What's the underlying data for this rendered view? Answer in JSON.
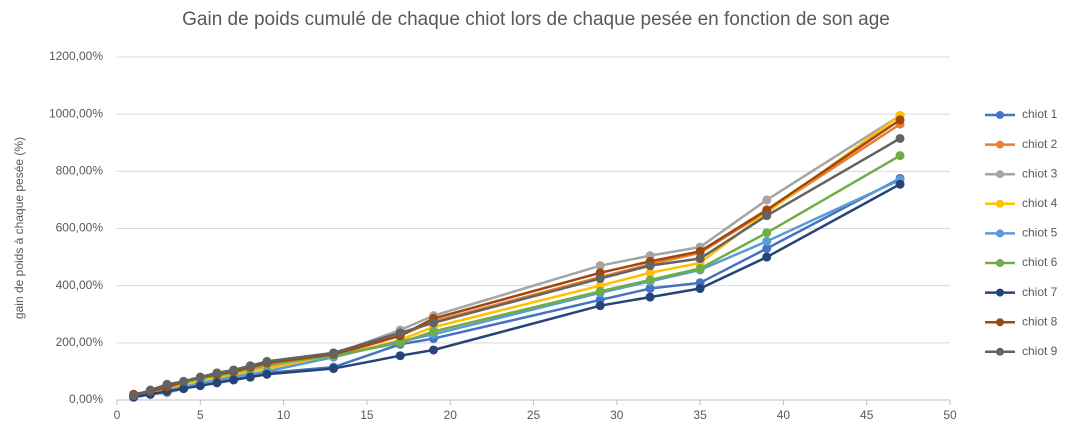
{
  "chart_data": {
    "type": "line",
    "title": "Gain de poids cumulé de chaque chiot lors de chaque pesée en fonction de son age",
    "ylabel": "gain de poids à chaque pesée (%)",
    "x": [
      1,
      2,
      3,
      4,
      5,
      6,
      7,
      8,
      9,
      13,
      17,
      19,
      29,
      32,
      35,
      39,
      47
    ],
    "xlim": [
      0,
      50
    ],
    "xticks": [
      0,
      5,
      10,
      15,
      20,
      25,
      30,
      35,
      40,
      45,
      50
    ],
    "ylim": [
      0,
      1200
    ],
    "yticks": [
      {
        "value": 0,
        "label": "0,00%"
      },
      {
        "value": 200,
        "label": "200,00%"
      },
      {
        "value": 400,
        "label": "400,00%"
      },
      {
        "value": 600,
        "label": "600,00%"
      },
      {
        "value": 800,
        "label": "800,00%"
      },
      {
        "value": 1000,
        "label": "1000,00%"
      },
      {
        "value": 1200,
        "label": "1200,00%"
      }
    ],
    "grid": true,
    "legend": "right",
    "series": [
      {
        "name": "chiot 1",
        "color": "#4472c4",
        "values": [
          10,
          20,
          30,
          40,
          55,
          65,
          75,
          85,
          95,
          115,
          195,
          215,
          350,
          390,
          410,
          530,
          775
        ]
      },
      {
        "name": "chiot 2",
        "color": "#ed7d31",
        "values": [
          20,
          30,
          45,
          60,
          75,
          85,
          95,
          105,
          120,
          155,
          225,
          275,
          430,
          475,
          515,
          660,
          965
        ]
      },
      {
        "name": "chiot 3",
        "color": "#a5a5a5",
        "values": [
          15,
          20,
          25,
          40,
          55,
          70,
          85,
          100,
          115,
          160,
          245,
          295,
          470,
          505,
          535,
          700,
          995
        ]
      },
      {
        "name": "chiot 4",
        "color": "#ffc000",
        "values": [
          15,
          25,
          40,
          55,
          70,
          80,
          90,
          100,
          110,
          150,
          210,
          255,
          400,
          445,
          480,
          655,
          995
        ]
      },
      {
        "name": "chiot 5",
        "color": "#5b9bd5",
        "values": [
          10,
          20,
          35,
          45,
          60,
          70,
          80,
          90,
          100,
          150,
          205,
          230,
          375,
          415,
          455,
          555,
          770
        ]
      },
      {
        "name": "chiot 6",
        "color": "#70ad47",
        "values": [
          15,
          30,
          45,
          60,
          75,
          85,
          95,
          110,
          125,
          155,
          200,
          240,
          380,
          420,
          460,
          585,
          855
        ]
      },
      {
        "name": "chiot 7",
        "color": "#264478",
        "values": [
          10,
          20,
          30,
          40,
          50,
          60,
          70,
          80,
          90,
          110,
          155,
          175,
          330,
          360,
          390,
          500,
          755
        ]
      },
      {
        "name": "chiot 8",
        "color": "#9e480e",
        "values": [
          20,
          30,
          45,
          65,
          80,
          90,
          100,
          115,
          130,
          160,
          225,
          285,
          445,
          485,
          520,
          665,
          980
        ]
      },
      {
        "name": "chiot 9",
        "color": "#636363",
        "values": [
          15,
          35,
          55,
          65,
          80,
          95,
          105,
          120,
          135,
          165,
          235,
          270,
          425,
          470,
          495,
          645,
          915
        ]
      }
    ]
  }
}
